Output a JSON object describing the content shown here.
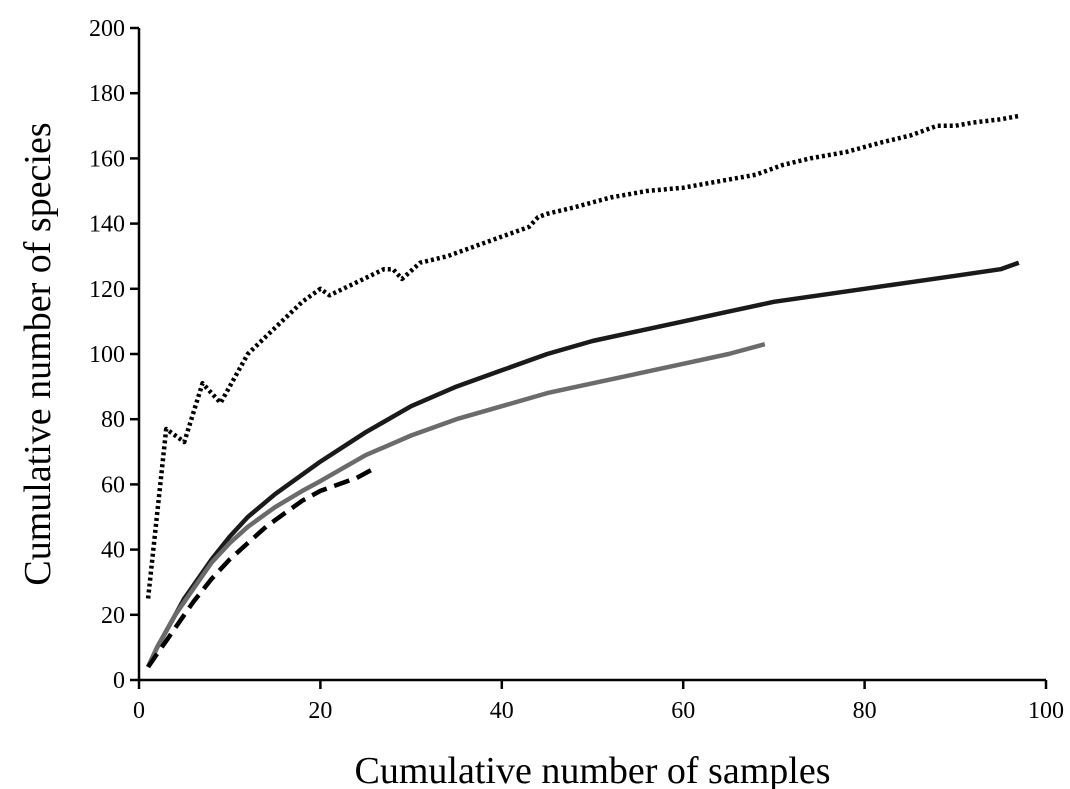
{
  "chart_data": {
    "type": "line",
    "title": "",
    "xlabel": "Cumulative number of samples",
    "ylabel": "Cumulative number of species",
    "xlim": [
      0,
      100
    ],
    "ylim": [
      0,
      200
    ],
    "xticks": [
      0,
      20,
      40,
      60,
      80,
      100
    ],
    "yticks": [
      0,
      20,
      40,
      60,
      80,
      100,
      120,
      140,
      160,
      180,
      200
    ],
    "grid": false,
    "legend": "none",
    "series": [
      {
        "style": "dotted",
        "color": "#000000",
        "x": [
          1,
          3,
          5,
          7,
          9,
          12,
          15,
          18,
          20,
          21,
          24,
          27,
          28,
          29,
          31,
          34,
          37,
          40,
          43,
          44,
          45,
          48,
          52,
          56,
          60,
          64,
          68,
          71,
          74,
          78,
          82,
          85,
          88,
          90,
          92,
          95,
          97
        ],
        "y": [
          25,
          77,
          73,
          91,
          85,
          100,
          108,
          116,
          120,
          118,
          122,
          126,
          126,
          123,
          128,
          130,
          133,
          136,
          139,
          142,
          143,
          145,
          148,
          150,
          151,
          153,
          155,
          158,
          160,
          162,
          165,
          167,
          170,
          170,
          171,
          172,
          173
        ]
      },
      {
        "style": "solid",
        "color": "#1a1a1a",
        "x": [
          1,
          2,
          3,
          4,
          5,
          6,
          8,
          10,
          12,
          15,
          18,
          20,
          25,
          30,
          35,
          40,
          45,
          50,
          55,
          60,
          65,
          70,
          75,
          80,
          85,
          90,
          95,
          97
        ],
        "y": [
          4,
          10,
          15,
          20,
          25,
          29,
          37,
          44,
          50,
          57,
          63,
          67,
          76,
          84,
          90,
          95,
          100,
          104,
          107,
          110,
          113,
          116,
          118,
          120,
          122,
          124,
          126,
          128
        ]
      },
      {
        "style": "solid",
        "color": "#6b6b6b",
        "x": [
          1,
          2,
          3,
          4,
          5,
          6,
          8,
          10,
          12,
          15,
          18,
          20,
          25,
          30,
          35,
          40,
          45,
          50,
          55,
          60,
          65,
          69
        ],
        "y": [
          4,
          10,
          15,
          20,
          24,
          28,
          36,
          42,
          47,
          53,
          58,
          61,
          69,
          75,
          80,
          84,
          88,
          91,
          94,
          97,
          100,
          103
        ]
      },
      {
        "style": "dashed",
        "color": "#000000",
        "x": [
          1,
          2,
          3,
          4,
          5,
          6,
          8,
          10,
          12,
          14,
          16,
          18,
          20,
          22,
          24,
          26
        ],
        "y": [
          4,
          8,
          12,
          16,
          20,
          24,
          31,
          37,
          42,
          47,
          51,
          55,
          58,
          60,
          62,
          65
        ]
      }
    ]
  }
}
